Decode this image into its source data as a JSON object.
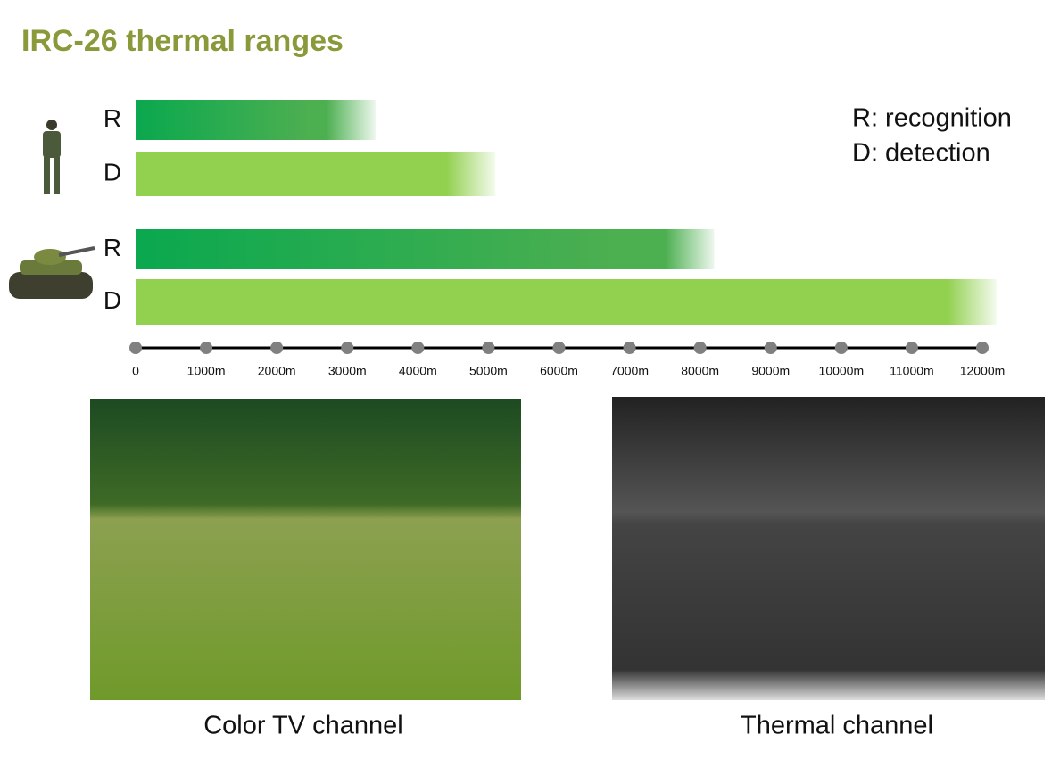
{
  "chart_data": {
    "type": "hbar",
    "title": "IRC-26 thermal ranges",
    "categories": [
      "R",
      "D",
      "R",
      "D"
    ],
    "values": [
      3400,
      5100,
      8200,
      12200
    ],
    "colors": [
      "#0aa84f",
      "#92d050",
      "#0aa84f",
      "#92d050"
    ],
    "annotations": [
      "R: recognition",
      "D: detection"
    ],
    "xlim": [
      0,
      12000
    ],
    "xticks": [
      0,
      {
        "value": 1000,
        "label": "1000m"
      },
      {
        "value": 2000,
        "label": "2000m"
      },
      {
        "value": 3000,
        "label": "3000m"
      },
      {
        "value": 4000,
        "label": "4000m"
      },
      {
        "value": 5000,
        "label": "5000m"
      },
      {
        "value": 6000,
        "label": "6000m"
      },
      {
        "value": 7000,
        "label": "7000m"
      },
      {
        "value": 8000,
        "label": "8000m"
      },
      {
        "value": 9000,
        "label": "9000m"
      },
      {
        "value": 10000,
        "label": "10000m"
      },
      {
        "value": 11000,
        "label": "11000m"
      },
      {
        "value": 12000,
        "label": "12000m"
      }
    ]
  },
  "captions": [
    "Color TV channel",
    "Thermal channel"
  ]
}
